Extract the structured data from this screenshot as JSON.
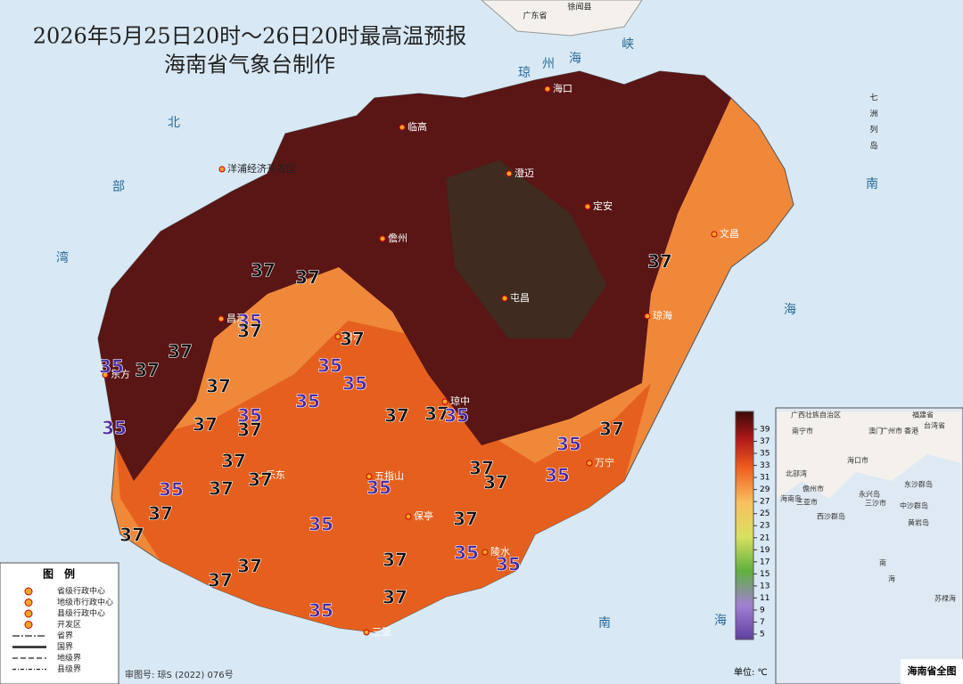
{
  "title": "2026年5月25日20时～26日20时最高温预报",
  "subtitle": "海南省气象台制作",
  "cities": [
    "海口",
    "临高",
    "澄迈",
    "定安",
    "文昌",
    "儋州",
    "屯昌",
    "琼海",
    "昌江",
    "白沙",
    "东方",
    "琼中",
    "万宁",
    "五指山",
    "乐东",
    "保亭",
    "陵水",
    "三亚",
    "洋浦经济开发区"
  ],
  "neighbor_labels": [
    "广东省",
    "徐闻县",
    "七",
    "洲",
    "列",
    "岛"
  ],
  "sea_labels": [
    "北",
    "部",
    "湾",
    "琼",
    "州",
    "海",
    "峡",
    "南",
    "海",
    "南",
    "海"
  ],
  "isotherm_labels": [
    37,
    37,
    35,
    37,
    37,
    37,
    35,
    37,
    35,
    35,
    37,
    35,
    35,
    37,
    37,
    35,
    37,
    37,
    35,
    37,
    37,
    37,
    37,
    37,
    35,
    35,
    35,
    35,
    37,
    37,
    37,
    35,
    37,
    37,
    35,
    35,
    37,
    37,
    37,
    35,
    37
  ],
  "color_scale": {
    "ticks": [
      39,
      37,
      35,
      33,
      31,
      29,
      27,
      25,
      23,
      21,
      19,
      17,
      15,
      13,
      11,
      9,
      7,
      5
    ],
    "unit": "单位: ℃"
  },
  "legend": {
    "title": "图　例",
    "items": [
      "省级行政中心",
      "地级市行政中心",
      "县级行政中心",
      "开发区",
      "省界",
      "国界",
      "地级界",
      "县级界"
    ]
  },
  "approval": "审图号: 琼S (2022) 076号",
  "inset": {
    "title": "海南省全图",
    "labels": [
      "广西壮族自治区",
      "南宁市",
      "广州市",
      "福建省",
      "台湾省",
      "澳门",
      "香港",
      "海口市",
      "北部湾",
      "儋州市",
      "三亚市",
      "海南岛",
      "东沙群岛",
      "西沙群岛",
      "永兴岛",
      "三沙市",
      "中沙群岛",
      "黄岩岛",
      "南",
      "海",
      "苏禄海"
    ]
  }
}
